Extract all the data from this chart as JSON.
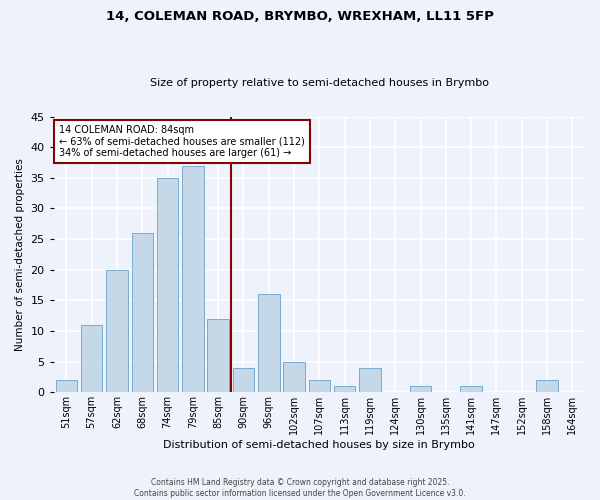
{
  "title1": "14, COLEMAN ROAD, BRYMBO, WREXHAM, LL11 5FP",
  "title2": "Size of property relative to semi-detached houses in Brymbo",
  "xlabel": "Distribution of semi-detached houses by size in Brymbo",
  "ylabel": "Number of semi-detached properties",
  "categories": [
    "51sqm",
    "57sqm",
    "62sqm",
    "68sqm",
    "74sqm",
    "79sqm",
    "85sqm",
    "90sqm",
    "96sqm",
    "102sqm",
    "107sqm",
    "113sqm",
    "119sqm",
    "124sqm",
    "130sqm",
    "135sqm",
    "141sqm",
    "147sqm",
    "152sqm",
    "158sqm",
    "164sqm"
  ],
  "values": [
    2,
    11,
    20,
    26,
    35,
    37,
    12,
    4,
    16,
    5,
    2,
    1,
    4,
    0,
    1,
    0,
    1,
    0,
    0,
    2,
    0
  ],
  "bar_color": "#c5d8e8",
  "bar_edge_color": "#7aabcf",
  "vline_color": "#8B0000",
  "annotation_title": "14 COLEMAN ROAD: 84sqm",
  "annotation_line1": "← 63% of semi-detached houses are smaller (112)",
  "annotation_line2": "34% of semi-detached houses are larger (61) →",
  "annotation_box_color": "#ffffff",
  "annotation_box_edge": "#8B0000",
  "ylim": [
    0,
    45
  ],
  "yticks": [
    0,
    5,
    10,
    15,
    20,
    25,
    30,
    35,
    40,
    45
  ],
  "background_color": "#eef2fa",
  "grid_color": "#ffffff",
  "footer_line1": "Contains HM Land Registry data © Crown copyright and database right 2025.",
  "footer_line2": "Contains public sector information licensed under the Open Government Licence v3.0."
}
